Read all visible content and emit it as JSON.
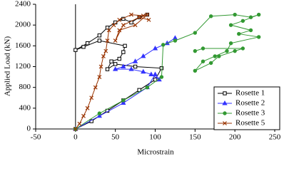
{
  "chart_data": {
    "type": "line",
    "x_label": "Microstrain",
    "y_label": "Applied Load (kN)",
    "xlim": [
      -50,
      250
    ],
    "xticks": [
      -50,
      0,
      50,
      100,
      150,
      200,
      250
    ],
    "ylim": [
      0,
      2400
    ],
    "yticks": [
      0,
      400,
      800,
      1200,
      1600,
      2000,
      2400
    ],
    "grid": false,
    "legend": "lower right",
    "series": [
      {
        "name": "Rosette 1",
        "color": "#000000",
        "marker": "square",
        "x": [
          0,
          20,
          40,
          60,
          80,
          100,
          108,
          75,
          50,
          40,
          45,
          55,
          60,
          62,
          30,
          10,
          0,
          15,
          30,
          40,
          50,
          60,
          70,
          80,
          90
        ],
        "values": [
          0,
          150,
          350,
          550,
          750,
          950,
          1170,
          1200,
          1250,
          1150,
          1300,
          1350,
          1480,
          1600,
          1700,
          1580,
          1520,
          1650,
          1800,
          1950,
          2050,
          2120,
          2050,
          2150,
          2200
        ]
      },
      {
        "name": "Rosette 2",
        "color": "#3333ff",
        "marker": "triangle",
        "x": [
          0,
          30,
          60,
          90,
          100,
          105,
          95,
          85,
          70,
          50,
          60,
          75,
          85,
          100,
          115,
          125
        ],
        "values": [
          0,
          250,
          500,
          800,
          1050,
          950,
          1050,
          1100,
          1150,
          1150,
          1200,
          1300,
          1400,
          1550,
          1650,
          1750
        ]
      },
      {
        "name": "Rosette 3",
        "color": "#339933",
        "marker": "circle",
        "x": [
          0,
          30,
          60,
          90,
          108,
          110,
          125,
          150,
          170,
          200,
          220,
          230,
          210,
          195,
          220,
          205,
          230,
          195,
          190,
          175,
          160,
          150,
          170,
          180,
          200,
          210,
          160,
          150
        ],
        "values": [
          0,
          300,
          550,
          800,
          1000,
          1620,
          1700,
          1850,
          2170,
          2200,
          2150,
          2200,
          2080,
          2000,
          1900,
          1830,
          1770,
          1650,
          1500,
          1400,
          1300,
          1120,
          1270,
          1400,
          1500,
          1550,
          1550,
          1500
        ]
      },
      {
        "name": "Rosette 5",
        "color": "#993300",
        "marker": "x",
        "x": [
          0,
          5,
          10,
          15,
          20,
          25,
          30,
          32,
          35,
          38,
          40,
          42,
          48,
          55,
          70,
          85,
          90,
          75,
          55,
          50,
          60,
          80,
          92
        ],
        "values": [
          0,
          100,
          250,
          400,
          600,
          800,
          1000,
          1200,
          1400,
          1500,
          1700,
          1900,
          2000,
          2100,
          2200,
          2180,
          2200,
          2000,
          1900,
          1700,
          2000,
          2150,
          2100
        ]
      }
    ]
  }
}
